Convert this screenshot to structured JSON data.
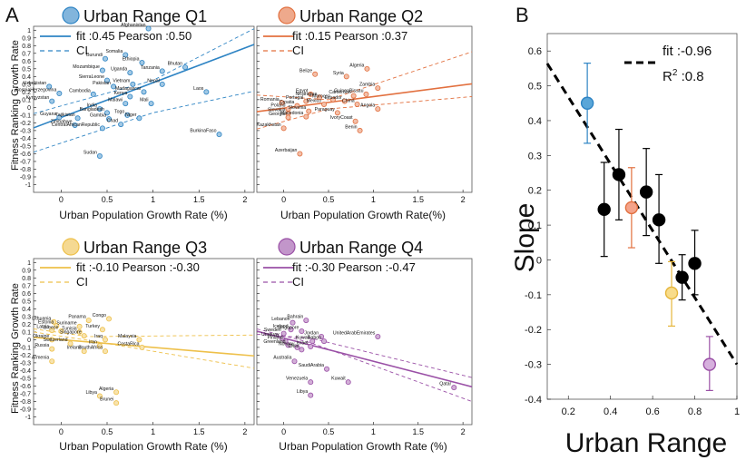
{
  "panel_letters": {
    "a": "A",
    "b": "B"
  },
  "axis_text": {
    "y_label": "Fitness Ranking Growth Rate",
    "x_label_q1": "Urban Population Growth Rate (%)",
    "x_label_q2": "Urban Population Growth Rate(%)",
    "x_label_q3": "Urban Population Growth Rate (%)",
    "x_label_q4": "Urban Population Growth Rate (%)",
    "x_ticks": [
      "0",
      "0.5",
      "1",
      "1.5",
      "2"
    ],
    "y_ticks": [
      "1",
      "0.9",
      "0.8",
      "0.7",
      "0.6",
      "0.5",
      "0.4",
      "0.3",
      "0.2",
      "0.1",
      "0",
      "-0.1",
      "-0.2",
      "-0.3",
      "-0.4",
      "-0.5",
      "-0.6",
      "-0.7",
      "-0.8",
      "-0.9",
      "-1"
    ]
  },
  "chart_data": [
    {
      "type": "scatter",
      "key": "q1",
      "title": "Urban Range Q1",
      "color": "#2e84c4",
      "xlim": [
        -0.3,
        2.1
      ],
      "ylim": [
        -1.1,
        1.05
      ],
      "fit_label": "fit :0.45 Pearson :0.50",
      "ci_label": "CI",
      "fit": {
        "slope": 0.45,
        "intercept": -0.13,
        "ci_upper": [
          [
            -0.3,
            -0.08
          ],
          [
            1.0,
            0.35
          ],
          [
            2.1,
            1.02
          ]
        ],
        "ci_lower": [
          [
            -0.3,
            -0.58
          ],
          [
            1.0,
            -0.07
          ],
          [
            2.1,
            0.21
          ]
        ]
      },
      "points": [
        {
          "label": "Afghanistan",
          "x": 0.95,
          "y": 1.02
        },
        {
          "label": "Burundi",
          "x": 0.48,
          "y": 0.63
        },
        {
          "label": "Somalia",
          "x": 0.7,
          "y": 0.68
        },
        {
          "label": "Ethiopia",
          "x": 0.88,
          "y": 0.58
        },
        {
          "label": "Bhutan",
          "x": 1.35,
          "y": 0.52
        },
        {
          "label": "Mozambique",
          "x": 0.45,
          "y": 0.48
        },
        {
          "label": "Uganda",
          "x": 0.75,
          "y": 0.45
        },
        {
          "label": "Tanzania",
          "x": 1.1,
          "y": 0.47
        },
        {
          "label": "SierraLeone",
          "x": 0.5,
          "y": 0.35
        },
        {
          "label": "Nepal",
          "x": 1.1,
          "y": 0.3
        },
        {
          "label": "Uzbekistan",
          "x": -0.13,
          "y": 0.27
        },
        {
          "label": "Pakistan",
          "x": 0.57,
          "y": 0.27
        },
        {
          "label": "Vietnam",
          "x": 0.78,
          "y": 0.3
        },
        {
          "label": "Madagascar",
          "x": 0.9,
          "y": 0.2
        },
        {
          "label": "Laos",
          "x": 1.58,
          "y": 0.2
        },
        {
          "label": "BosniaHerzegovina",
          "x": -0.02,
          "y": 0.18
        },
        {
          "label": "Cambodia",
          "x": 0.35,
          "y": 0.17
        },
        {
          "label": "Kenya",
          "x": 0.75,
          "y": 0.14
        },
        {
          "label": "Kyrgyzstan",
          "x": -0.1,
          "y": 0.08
        },
        {
          "label": "Malawi",
          "x": 0.7,
          "y": 0.05
        },
        {
          "label": "Mali",
          "x": 0.98,
          "y": 0.05
        },
        {
          "label": "India",
          "x": 0.42,
          "y": -0.02
        },
        {
          "label": "Bangladesh",
          "x": 0.5,
          "y": -0.07
        },
        {
          "label": "Togo",
          "x": 0.72,
          "y": -0.1
        },
        {
          "label": "Guyana",
          "x": -0.02,
          "y": -0.13
        },
        {
          "label": "Tajikistan",
          "x": 0.18,
          "y": -0.14
        },
        {
          "label": "Gambia",
          "x": 0.52,
          "y": -0.15
        },
        {
          "label": "Niger",
          "x": 0.85,
          "y": -0.14
        },
        {
          "label": "Zimbabwe",
          "x": 0.15,
          "y": -0.23
        },
        {
          "label": "Chad",
          "x": 0.65,
          "y": -0.22
        },
        {
          "label": "CentralAfricanRepublic",
          "x": 0.45,
          "y": -0.27
        },
        {
          "label": "BurkinaFaso",
          "x": 1.72,
          "y": -0.35
        },
        {
          "label": "Sudan",
          "x": 0.42,
          "y": -0.63
        }
      ]
    },
    {
      "type": "scatter",
      "key": "q2",
      "title": "Urban Range Q2",
      "color": "#e2703f",
      "xlim": [
        -0.3,
        2.1
      ],
      "ylim": [
        -1.1,
        1.05
      ],
      "fit_label": "fit :0.15 Pearson :0.37",
      "ci_label": "CI",
      "fit": {
        "slope": 0.15,
        "intercept": -0.01,
        "ci_upper": [
          [
            -0.3,
            0.16
          ],
          [
            0.5,
            0.1
          ],
          [
            2.1,
            0.72
          ]
        ],
        "ci_lower": [
          [
            -0.3,
            -0.28
          ],
          [
            0.5,
            -0.02
          ],
          [
            2.1,
            0.14
          ]
        ]
      },
      "points": [
        {
          "label": "Algeria",
          "x": 0.93,
          "y": 0.5
        },
        {
          "label": "Belize",
          "x": 0.35,
          "y": 0.43
        },
        {
          "label": "Syria",
          "x": 0.7,
          "y": 0.4
        },
        {
          "label": "Zambia",
          "x": 1.05,
          "y": 0.25
        },
        {
          "label": "GuineaBissau",
          "x": 0.92,
          "y": 0.17
        },
        {
          "label": "Cameroon",
          "x": 0.78,
          "y": 0.15
        },
        {
          "label": "Egypt",
          "x": 0.3,
          "y": 0.17
        },
        {
          "label": "Nicaragua",
          "x": 0.4,
          "y": 0.13
        },
        {
          "label": "Morocco",
          "x": 0.55,
          "y": 0.1
        },
        {
          "label": "Portugal",
          "x": 0.25,
          "y": 0.08
        },
        {
          "label": "Romania",
          "x": -0.02,
          "y": 0.06
        },
        {
          "label": "Ecuador",
          "x": 0.68,
          "y": 0.08
        },
        {
          "label": "Croatia",
          "x": 0.15,
          "y": 0.02
        },
        {
          "label": "Mexico",
          "x": 0.45,
          "y": 0.04
        },
        {
          "label": "China",
          "x": 0.82,
          "y": 0.04
        },
        {
          "label": "Angola",
          "x": 1.05,
          "y": -0.02
        },
        {
          "label": "Poland",
          "x": 0.05,
          "y": -0.02
        },
        {
          "label": "Slovenia",
          "x": 0.28,
          "y": -0.05
        },
        {
          "label": "Paraguay",
          "x": 0.6,
          "y": -0.07
        },
        {
          "label": "Slovakia",
          "x": 0.05,
          "y": -0.08
        },
        {
          "label": "Georgia",
          "x": 0.05,
          "y": -0.13
        },
        {
          "label": "Macedonia",
          "x": 0.25,
          "y": -0.12
        },
        {
          "label": "IvoryCoast",
          "x": 0.8,
          "y": -0.18
        },
        {
          "label": "Kazakhstan",
          "x": 0.0,
          "y": -0.27
        },
        {
          "label": "Benin",
          "x": 0.85,
          "y": -0.3
        },
        {
          "label": "Azerbaijan",
          "x": 0.18,
          "y": -0.6
        }
      ]
    },
    {
      "type": "scatter",
      "key": "q3",
      "title": "Urban Range Q3",
      "color": "#eec04a",
      "xlim": [
        -0.3,
        2.1
      ],
      "ylim": [
        -1.1,
        1.05
      ],
      "fit_label": "fit :-0.10 Pearson :-0.30",
      "ci_label": "CI",
      "fit": {
        "slope": -0.1,
        "intercept": 0.0,
        "ci_upper": [
          [
            -0.3,
            0.14
          ],
          [
            0.3,
            0.04
          ],
          [
            2.1,
            0.06
          ]
        ],
        "ci_lower": [
          [
            -0.3,
            0.1
          ],
          [
            0.3,
            -0.01
          ],
          [
            2.1,
            -0.37
          ]
        ]
      },
      "points": [
        {
          "label": "Congo",
          "x": 0.52,
          "y": 0.27
        },
        {
          "label": "Panama",
          "x": 0.3,
          "y": 0.25
        },
        {
          "label": "Lithuania",
          "x": -0.08,
          "y": 0.23
        },
        {
          "label": "Estonia",
          "x": -0.05,
          "y": 0.18
        },
        {
          "label": "Suriname",
          "x": 0.2,
          "y": 0.17
        },
        {
          "label": "Latvia",
          "x": -0.1,
          "y": 0.12
        },
        {
          "label": "Greece",
          "x": 0.0,
          "y": 0.11
        },
        {
          "label": "Turkey",
          "x": 0.45,
          "y": 0.13
        },
        {
          "label": "Tunisia",
          "x": 0.2,
          "y": 0.1
        },
        {
          "label": "Singapore",
          "x": 0.25,
          "y": 0.05
        },
        {
          "label": "Okraine",
          "x": -0.1,
          "y": 0.0
        },
        {
          "label": "Iraq",
          "x": 0.48,
          "y": 0.0
        },
        {
          "label": "Malaysia",
          "x": 0.85,
          "y": 0.0
        },
        {
          "label": "Switzerland",
          "x": 0.1,
          "y": -0.05
        },
        {
          "label": "Iran",
          "x": 0.42,
          "y": -0.08
        },
        {
          "label": "CostaRica",
          "x": 0.88,
          "y": -0.1
        },
        {
          "label": "Russia",
          "x": -0.1,
          "y": -0.12
        },
        {
          "label": "Ireland",
          "x": 0.25,
          "y": -0.15
        },
        {
          "label": "SouthAfrica",
          "x": 0.48,
          "y": -0.15
        },
        {
          "label": "Armenia",
          "x": -0.1,
          "y": -0.28
        },
        {
          "label": "Algeria",
          "x": 0.6,
          "y": -0.68
        },
        {
          "label": "Libya",
          "x": 0.42,
          "y": -0.73
        },
        {
          "label": "Brunei",
          "x": 0.6,
          "y": -0.82
        }
      ]
    },
    {
      "type": "scatter",
      "key": "q4",
      "title": "Urban Range Q4",
      "color": "#9a50a6",
      "xlim": [
        -0.3,
        2.1
      ],
      "ylim": [
        -1.1,
        1.05
      ],
      "fit_label": "fit :-0.30 Pearson :-0.47",
      "ci_label": "CI",
      "fit": {
        "slope": -0.3,
        "intercept": 0.02,
        "ci_upper": [
          [
            -0.3,
            0.07
          ],
          [
            0.3,
            0.02
          ],
          [
            2.1,
            -0.49
          ]
        ],
        "ci_lower": [
          [
            -0.3,
            0.14
          ],
          [
            0.3,
            -0.04
          ],
          [
            2.1,
            -0.8
          ]
        ]
      },
      "points": [
        {
          "label": "Bahrain",
          "x": 0.25,
          "y": 0.25
        },
        {
          "label": "Lebanon",
          "x": 0.1,
          "y": 0.22
        },
        {
          "label": "Iceland",
          "x": 0.08,
          "y": 0.13
        },
        {
          "label": "Singapore",
          "x": 0.2,
          "y": 0.11
        },
        {
          "label": "Sweden",
          "x": 0.0,
          "y": 0.08
        },
        {
          "label": "UnitedArabEmirates",
          "x": 1.05,
          "y": 0.04
        },
        {
          "label": "Uruguay",
          "x": -0.02,
          "y": 0.02
        },
        {
          "label": "Jordan",
          "x": 0.42,
          "y": 0.04
        },
        {
          "label": "Finland",
          "x": 0.02,
          "y": -0.02
        },
        {
          "label": "Kuwait",
          "x": 0.32,
          "y": -0.02
        },
        {
          "label": "Gabon",
          "x": 0.45,
          "y": -0.02
        },
        {
          "label": "Greenland",
          "x": 0.05,
          "y": -0.07
        },
        {
          "label": "Norway",
          "x": 0.15,
          "y": -0.1
        },
        {
          "label": "Israel",
          "x": 0.3,
          "y": -0.09
        },
        {
          "label": "Chile",
          "x": 0.2,
          "y": -0.13
        },
        {
          "label": "Australia",
          "x": 0.12,
          "y": -0.28
        },
        {
          "label": "SaudiArabia",
          "x": 0.48,
          "y": -0.38
        },
        {
          "label": "Venezuela",
          "x": 0.3,
          "y": -0.55
        },
        {
          "label": "Kuwait",
          "x": 0.72,
          "y": -0.55
        },
        {
          "label": "Libya",
          "x": 0.3,
          "y": -0.72
        },
        {
          "label": "Qatar",
          "x": 1.9,
          "y": -0.62
        }
      ]
    },
    {
      "type": "scatter",
      "key": "b",
      "title": "",
      "xlabel": "Urban Range",
      "ylabel": "Slope",
      "xlim": [
        0.1,
        1.0
      ],
      "ylim": [
        -0.4,
        0.65
      ],
      "x_ticks": [
        "0.2",
        "0.4",
        "0.6",
        "0.8",
        "1"
      ],
      "y_ticks": [
        "0.6",
        "0.5",
        "0.4",
        "0.3",
        "0.2",
        "0.1",
        "0",
        "-0.1",
        "-0.2",
        "-0.3",
        "-0.4"
      ],
      "fit_label": "fit :-0.96",
      "r2_label": "R",
      "r2_sup": "2",
      "r2_value": " :0.8",
      "fit": {
        "slope": -0.96,
        "intercept": 0.66
      },
      "points": [
        {
          "x": 0.29,
          "y": 0.45,
          "lo": 0.335,
          "hi": 0.565,
          "color": "#5aa6d8",
          "edge": "#2e84c4"
        },
        {
          "x": 0.37,
          "y": 0.145,
          "lo": 0.01,
          "hi": 0.28,
          "color": "#000000",
          "edge": "#000000"
        },
        {
          "x": 0.44,
          "y": 0.245,
          "lo": 0.115,
          "hi": 0.375,
          "color": "#000000",
          "edge": "#000000"
        },
        {
          "x": 0.5,
          "y": 0.15,
          "lo": 0.035,
          "hi": 0.265,
          "color": "#f4a38a",
          "edge": "#e2703f"
        },
        {
          "x": 0.57,
          "y": 0.195,
          "lo": 0.07,
          "hi": 0.32,
          "color": "#000000",
          "edge": "#000000"
        },
        {
          "x": 0.63,
          "y": 0.115,
          "lo": -0.01,
          "hi": 0.245,
          "color": "#000000",
          "edge": "#000000"
        },
        {
          "x": 0.69,
          "y": -0.095,
          "lo": -0.19,
          "hi": -0.005,
          "color": "#f8dc8a",
          "edge": "#e5b53a"
        },
        {
          "x": 0.74,
          "y": -0.05,
          "lo": -0.115,
          "hi": 0.015,
          "color": "#000000",
          "edge": "#000000"
        },
        {
          "x": 0.8,
          "y": -0.01,
          "lo": -0.1,
          "hi": 0.085,
          "color": "#000000",
          "edge": "#000000"
        },
        {
          "x": 0.87,
          "y": -0.3,
          "lo": -0.375,
          "hi": -0.22,
          "color": "#d6b0dd",
          "edge": "#9a50a6"
        }
      ]
    }
  ]
}
